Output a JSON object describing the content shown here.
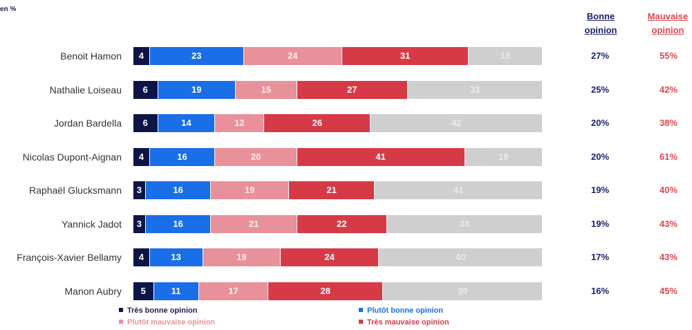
{
  "unit_label": "en %",
  "headers": {
    "good": [
      "Bonne",
      "opinion"
    ],
    "bad": [
      "Mauvaise",
      "opinion"
    ]
  },
  "colors": {
    "tres_bonne": "#0d1446",
    "plutot_bonne": "#1a6ee8",
    "plutot_mauvaise": "#e8919a",
    "tres_mauvaise": "#d73a47",
    "sans_opinion": "#cfcfcf",
    "good_text": "#1a1f6e",
    "bad_text": "#e0454f"
  },
  "chart_data": {
    "type": "bar",
    "orientation": "horizontal-stacked-100",
    "categories": [
      "Benoit Hamon",
      "Nathalie Loiseau",
      "Jordan Bardella",
      "Nicolas Dupont-Aignan",
      "Raphaël Glucksmann",
      "Yannick Jadot",
      "François-Xavier Bellamy",
      "Manon Aubry"
    ],
    "series": [
      {
        "name": "Très bonne opinion",
        "color": "#0d1446",
        "values": [
          4,
          6,
          6,
          4,
          3,
          3,
          4,
          5
        ]
      },
      {
        "name": "Plutôt bonne opinion",
        "color": "#1a6ee8",
        "values": [
          23,
          19,
          14,
          16,
          16,
          16,
          13,
          11
        ]
      },
      {
        "name": "Plutôt mauvaise opinion",
        "color": "#e8919a",
        "values": [
          24,
          15,
          12,
          20,
          19,
          21,
          19,
          17
        ]
      },
      {
        "name": "Très mauvaise opinion",
        "color": "#d73a47",
        "values": [
          31,
          27,
          26,
          41,
          21,
          22,
          24,
          28
        ]
      },
      {
        "color": "#cfcfcf",
        "values": [
          18,
          33,
          42,
          19,
          41,
          38,
          40,
          39
        ]
      }
    ],
    "bonne_opinion": [
      "27%",
      "25%",
      "20%",
      "20%",
      "19%",
      "19%",
      "17%",
      "16%"
    ],
    "mauvaise_opinion": [
      "55%",
      "42%",
      "38%",
      "61%",
      "40%",
      "43%",
      "43%",
      "45%"
    ],
    "legend": [
      {
        "label": "Très bonne opinion",
        "color": "#0d1446"
      },
      {
        "label": "Plutôt bonne opinion",
        "color": "#1a6ee8"
      },
      {
        "label": "Plutôt mauvaise opinion",
        "color": "#e8919a"
      },
      {
        "label": "Très mauvaise opinion",
        "color": "#d73a47"
      }
    ]
  }
}
